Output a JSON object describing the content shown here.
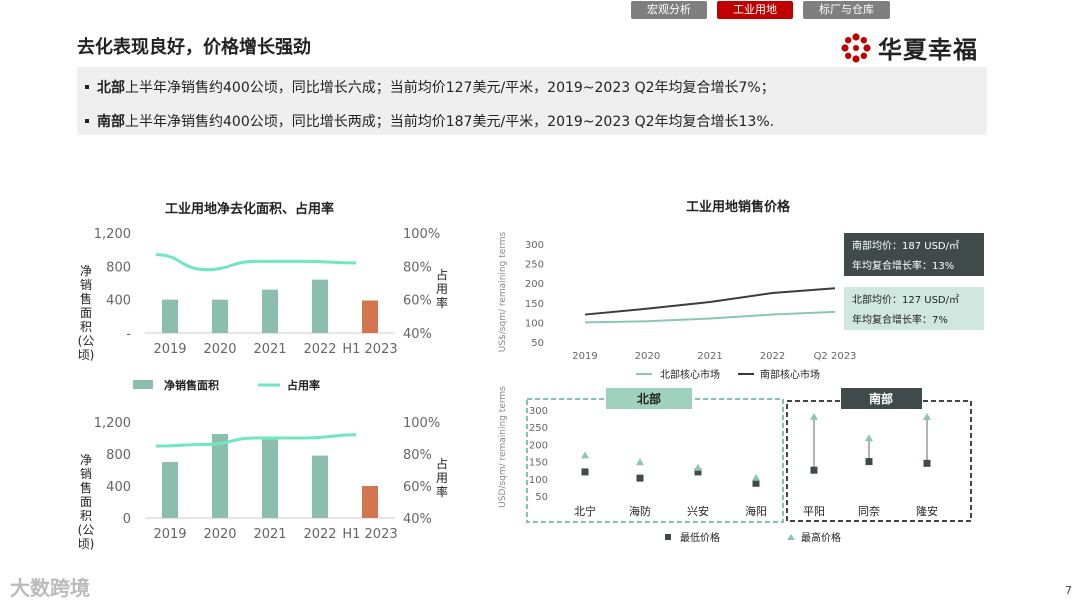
{
  "nav": {
    "tabs": [
      "宏观分析",
      "工业用地",
      "标厂与仓库"
    ],
    "active": 1
  },
  "title": "去化表现良好，价格增长强劲",
  "logo": {
    "text": "华夏幸福"
  },
  "bullets": [
    {
      "bold": "北部",
      "text": "上半年净销售约400公顷，同比增长六成；当前均价127美元/平米，2019~2023 Q2年均复合增长7%；"
    },
    {
      "bold": "南部",
      "text": "上半年净销售约400公顷，同比增长两成；当前均价187美元/平米，2019~2023 Q2年均复合增长13%."
    }
  ],
  "watermark": "大数跨境",
  "page_number": "7",
  "colors": {
    "bar": "#8cbeac",
    "bar_highlight": "#d3764f",
    "line": "#6ee8bc",
    "north": "#8cc8b0",
    "south": "#3c3c3c",
    "accent": "#c00000"
  },
  "chart_data": [
    {
      "type": "bar",
      "title": "工业用地净去化面积、占用率",
      "ylabel": "净销售面积(公顷)",
      "y2label": "占用率",
      "categories": [
        "2019",
        "2020",
        "2021",
        "2022",
        "H1 2023"
      ],
      "yticks": [
        "-",
        "400",
        "800",
        "1,200"
      ],
      "y2ticks": [
        "40%",
        "60%",
        "80%",
        "100%"
      ],
      "ylim": [
        0,
        1200
      ],
      "y2lim": [
        40,
        100
      ],
      "series": [
        {
          "name": "净销售面积",
          "kind": "bar",
          "values": [
            400,
            400,
            520,
            640,
            390
          ]
        },
        {
          "name": "占用率",
          "kind": "line",
          "axis": "y2",
          "values": [
            87,
            78,
            83,
            83,
            82
          ]
        }
      ],
      "legend": "bottom"
    },
    {
      "type": "bar",
      "ylabel": "净销售面积(公顷)",
      "y2label": "占用率",
      "categories": [
        "2019",
        "2020",
        "2021",
        "2022",
        "H1 2023"
      ],
      "yticks": [
        "0",
        "400",
        "800",
        "1,200"
      ],
      "y2ticks": [
        "40%",
        "60%",
        "80%",
        "100%"
      ],
      "ylim": [
        0,
        1200
      ],
      "y2lim": [
        40,
        100
      ],
      "series": [
        {
          "kind": "bar",
          "values": [
            700,
            1050,
            980,
            780,
            400
          ]
        },
        {
          "kind": "line",
          "axis": "y2",
          "values": [
            85,
            86,
            90,
            90,
            92
          ]
        }
      ]
    },
    {
      "type": "line",
      "title": "工业用地销售价格",
      "ylabel": "US$/sqm/ remaining terms",
      "x": [
        "2019",
        "2020",
        "2021",
        "2022",
        "Q2 2023"
      ],
      "yticks": [
        "50",
        "100",
        "150",
        "200",
        "250",
        "300"
      ],
      "ylim": [
        50,
        300
      ],
      "series": [
        {
          "name": "北部核心市场",
          "values": [
            100,
            103,
            110,
            120,
            127
          ]
        },
        {
          "name": "南部核心市场",
          "values": [
            120,
            135,
            152,
            175,
            187
          ]
        }
      ],
      "annotations": [
        {
          "lines": [
            "南部均价：187 USD/㎡",
            "年均复合增长率：13%"
          ]
        },
        {
          "lines": [
            "北部均价：127 USD/㎡",
            "年均复合增长率：7%"
          ]
        }
      ],
      "legend": "bottom"
    },
    {
      "type": "scatter",
      "ylabel": "USD/sqm/ remaining terms",
      "categories": [
        "北宁",
        "海防",
        "兴安",
        "海阳",
        "平阳",
        "同奈",
        "隆安"
      ],
      "yticks": [
        "50",
        "100",
        "150",
        "200",
        "250",
        "300"
      ],
      "ylim": [
        50,
        300
      ],
      "groups": [
        {
          "name": "北部",
          "members": [
            0,
            1,
            2,
            3
          ]
        },
        {
          "name": "南部",
          "members": [
            4,
            5,
            6
          ]
        }
      ],
      "series": [
        {
          "name": "最低价格",
          "values": [
            120,
            102,
            120,
            87,
            125,
            150,
            145
          ]
        },
        {
          "name": "最高价格",
          "values": [
            168,
            148,
            132,
            103,
            280,
            218,
            280
          ]
        }
      ],
      "legend": "bottom"
    }
  ]
}
